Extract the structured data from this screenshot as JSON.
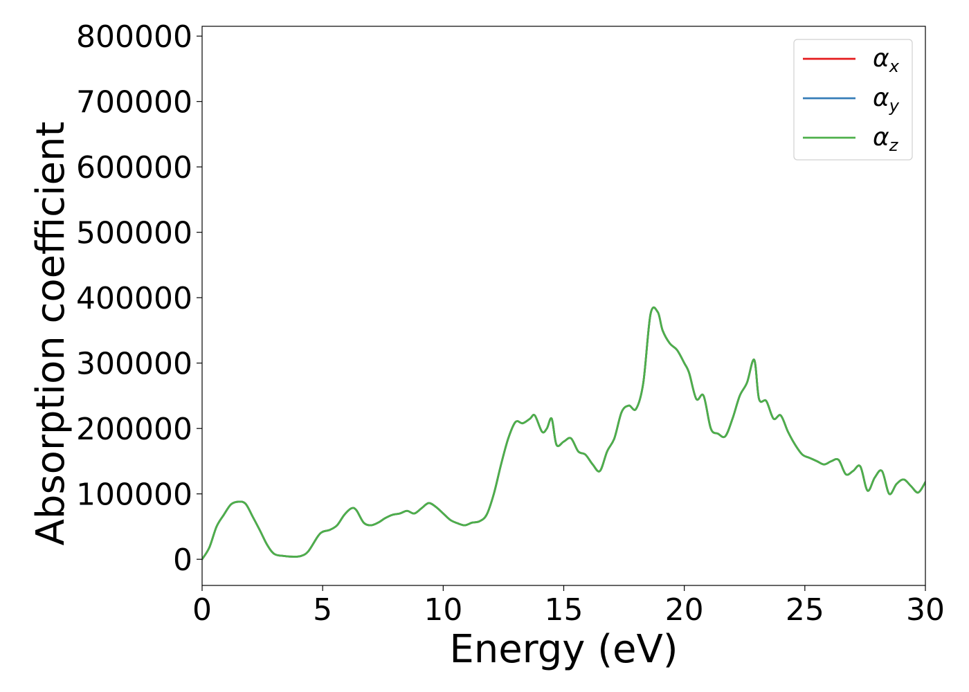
{
  "chart_data": {
    "type": "line",
    "title": "",
    "xlabel": "Energy (eV)",
    "ylabel": "Absorption coefficient",
    "xlim": [
      0,
      30
    ],
    "ylim": [
      -40000,
      815000
    ],
    "grid": false,
    "legend_position": "top-right",
    "x_ticks": [
      {
        "value": 0,
        "label": "0"
      },
      {
        "value": 5,
        "label": "5"
      },
      {
        "value": 10,
        "label": "10"
      },
      {
        "value": 15,
        "label": "15"
      },
      {
        "value": 20,
        "label": "20"
      },
      {
        "value": 25,
        "label": "25"
      },
      {
        "value": 30,
        "label": "30"
      }
    ],
    "y_ticks": [
      {
        "value": 0,
        "label": "0"
      },
      {
        "value": 100000,
        "label": "100000"
      },
      {
        "value": 200000,
        "label": "200000"
      },
      {
        "value": 300000,
        "label": "300000"
      },
      {
        "value": 400000,
        "label": "400000"
      },
      {
        "value": 500000,
        "label": "500000"
      },
      {
        "value": 600000,
        "label": "600000"
      },
      {
        "value": 700000,
        "label": "700000"
      },
      {
        "value": 800000,
        "label": "800000"
      }
    ],
    "x": [
      0,
      0.3,
      0.6,
      0.9,
      1.2,
      1.5,
      1.8,
      2.1,
      2.4,
      2.7,
      3.0,
      3.4,
      3.8,
      4.1,
      4.4,
      4.8,
      5.0,
      5.3,
      5.6,
      5.9,
      6.2,
      6.4,
      6.7,
      7.0,
      7.3,
      7.6,
      7.9,
      8.2,
      8.5,
      8.8,
      9.1,
      9.4,
      9.7,
      10.0,
      10.3,
      10.6,
      10.9,
      11.2,
      11.5,
      11.8,
      12.1,
      12.4,
      12.7,
      13.0,
      13.3,
      13.6,
      13.8,
      14.1,
      14.3,
      14.5,
      14.7,
      15.0,
      15.3,
      15.6,
      15.9,
      16.2,
      16.5,
      16.8,
      17.1,
      17.4,
      17.7,
      18.0,
      18.3,
      18.6,
      18.9,
      19.1,
      19.4,
      19.7,
      20.0,
      20.2,
      20.5,
      20.8,
      21.1,
      21.4,
      21.7,
      22.0,
      22.3,
      22.6,
      22.9,
      23.1,
      23.4,
      23.7,
      24.0,
      24.3,
      24.6,
      24.9,
      25.2,
      25.5,
      25.8,
      26.1,
      26.4,
      26.7,
      27.0,
      27.3,
      27.6,
      27.9,
      28.2,
      28.5,
      28.8,
      29.1,
      29.4,
      29.7,
      30.0
    ],
    "series": [
      {
        "name": "αx",
        "color": "#e41a1c",
        "values": [
          0,
          18000,
          50000,
          68000,
          84000,
          88000,
          85000,
          65000,
          44000,
          22000,
          8000,
          5000,
          4000,
          5000,
          12000,
          35000,
          42000,
          45000,
          52000,
          68000,
          78000,
          75000,
          56000,
          52000,
          56000,
          63000,
          68000,
          70000,
          74000,
          70000,
          78000,
          86000,
          80000,
          70000,
          60000,
          55000,
          52000,
          56000,
          58000,
          68000,
          100000,
          145000,
          185000,
          210000,
          208000,
          215000,
          220000,
          195000,
          200000,
          215000,
          175000,
          180000,
          185000,
          165000,
          160000,
          145000,
          135000,
          165000,
          185000,
          225000,
          235000,
          230000,
          270000,
          375000,
          378000,
          350000,
          330000,
          320000,
          300000,
          285000,
          245000,
          250000,
          200000,
          192000,
          188000,
          215000,
          250000,
          270000,
          305000,
          245000,
          242000,
          215000,
          220000,
          195000,
          175000,
          160000,
          155000,
          150000,
          145000,
          150000,
          152000,
          130000,
          135000,
          142000,
          105000,
          125000,
          135000,
          100000,
          115000,
          122000,
          112000,
          102000,
          118000
        ]
      },
      {
        "name": "αy",
        "color": "#377eb8",
        "values": [
          0,
          18000,
          50000,
          68000,
          84000,
          88000,
          85000,
          65000,
          44000,
          22000,
          8000,
          5000,
          4000,
          5000,
          12000,
          35000,
          42000,
          45000,
          52000,
          68000,
          78000,
          75000,
          56000,
          52000,
          56000,
          63000,
          68000,
          70000,
          74000,
          70000,
          78000,
          86000,
          80000,
          70000,
          60000,
          55000,
          52000,
          56000,
          58000,
          68000,
          100000,
          145000,
          185000,
          210000,
          208000,
          215000,
          220000,
          195000,
          200000,
          215000,
          175000,
          180000,
          185000,
          165000,
          160000,
          145000,
          135000,
          165000,
          185000,
          225000,
          235000,
          230000,
          270000,
          375000,
          378000,
          350000,
          330000,
          320000,
          300000,
          285000,
          245000,
          250000,
          200000,
          192000,
          188000,
          215000,
          250000,
          270000,
          305000,
          245000,
          242000,
          215000,
          220000,
          195000,
          175000,
          160000,
          155000,
          150000,
          145000,
          150000,
          152000,
          130000,
          135000,
          142000,
          105000,
          125000,
          135000,
          100000,
          115000,
          122000,
          112000,
          102000,
          118000
        ]
      },
      {
        "name": "αz",
        "color": "#4daf4a",
        "values": [
          0,
          18000,
          50000,
          68000,
          84000,
          88000,
          85000,
          65000,
          44000,
          22000,
          8000,
          5000,
          4000,
          5000,
          12000,
          35000,
          42000,
          45000,
          52000,
          68000,
          78000,
          75000,
          56000,
          52000,
          56000,
          63000,
          68000,
          70000,
          74000,
          70000,
          78000,
          86000,
          80000,
          70000,
          60000,
          55000,
          52000,
          56000,
          58000,
          68000,
          100000,
          145000,
          185000,
          210000,
          208000,
          215000,
          220000,
          195000,
          200000,
          215000,
          175000,
          180000,
          185000,
          165000,
          160000,
          145000,
          135000,
          165000,
          185000,
          225000,
          235000,
          230000,
          270000,
          375000,
          378000,
          350000,
          330000,
          320000,
          300000,
          285000,
          245000,
          250000,
          200000,
          192000,
          188000,
          215000,
          250000,
          270000,
          305000,
          245000,
          242000,
          215000,
          220000,
          195000,
          175000,
          160000,
          155000,
          150000,
          145000,
          150000,
          152000,
          130000,
          135000,
          142000,
          105000,
          125000,
          135000,
          100000,
          115000,
          122000,
          112000,
          102000,
          118000
        ]
      }
    ],
    "legend": [
      {
        "base": "α",
        "sub": "x",
        "color": "#e41a1c"
      },
      {
        "base": "α",
        "sub": "y",
        "color": "#377eb8"
      },
      {
        "base": "α",
        "sub": "z",
        "color": "#4daf4a"
      }
    ]
  }
}
